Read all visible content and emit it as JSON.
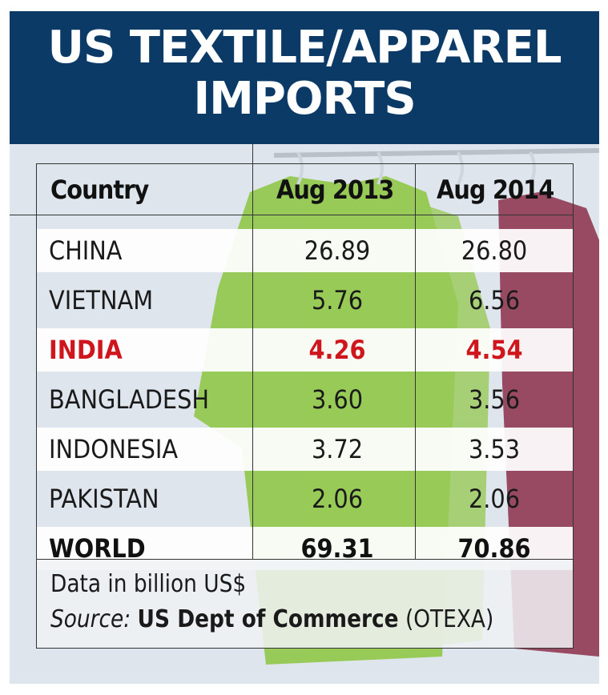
{
  "title_lines": [
    "US TEXTILE/APPAREL",
    "IMPORTS"
  ],
  "headers": [
    "Country",
    "Aug 2013",
    "Aug 2014"
  ],
  "rows": [
    {
      "country": "CHINA",
      "aug2013": "26.89",
      "aug2014": "26.80"
    },
    {
      "country": "VIETNAM",
      "aug2013": "5.76",
      "aug2014": "6.56"
    },
    {
      "country": "INDIA",
      "aug2013": "4.26",
      "aug2014": "4.54"
    },
    {
      "country": "BANGLADESH",
      "aug2013": "3.60",
      "aug2014": "3.56"
    },
    {
      "country": "INDONESIA",
      "aug2013": "3.72",
      "aug2014": "3.53"
    },
    {
      "country": "PAKISTAN",
      "aug2013": "2.06",
      "aug2014": "2.06"
    },
    {
      "country": "WORLD",
      "aug2013": "69.31",
      "aug2014": "70.86"
    }
  ],
  "footer": {
    "note": "Data in billion US$",
    "source_label": "Source:",
    "source_name": "US Dept of Commerce",
    "source_suffix": "(OTEXA)"
  },
  "colors": {
    "header_bg": "#0b3a66",
    "highlight": "#d0161d",
    "garment_green": "#8cc63f",
    "garment_maroon": "#8b2f4a"
  },
  "chart_data": {
    "type": "table",
    "title": "US TEXTILE/APPAREL IMPORTS",
    "columns": [
      "Country",
      "Aug 2013",
      "Aug 2014"
    ],
    "categories": [
      "CHINA",
      "VIETNAM",
      "INDIA",
      "BANGLADESH",
      "INDONESIA",
      "PAKISTAN",
      "WORLD"
    ],
    "series": [
      {
        "name": "Aug 2013",
        "values": [
          26.89,
          5.76,
          4.26,
          3.6,
          3.72,
          2.06,
          69.31
        ]
      },
      {
        "name": "Aug 2014",
        "values": [
          26.8,
          6.56,
          4.54,
          3.56,
          3.53,
          2.06,
          70.86
        ]
      }
    ],
    "highlighted_category": "INDIA",
    "unit_note": "Data in billion US$"
  }
}
